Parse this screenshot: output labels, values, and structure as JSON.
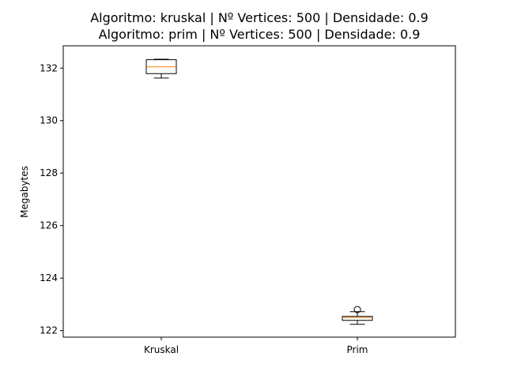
{
  "chart_data": {
    "type": "box",
    "title_lines": [
      "Algoritmo: kruskal | Nº Vertices: 500 | Densidade: 0.9",
      "Algoritmo: prim | Nº Vertices: 500 | Densidade: 0.9"
    ],
    "xlabel": "",
    "ylabel": "Megabytes",
    "ylim": [
      121.75,
      132.85
    ],
    "yticks": [
      122,
      124,
      126,
      128,
      130,
      132
    ],
    "categories": [
      "Kruskal",
      "Prim"
    ],
    "boxes": [
      {
        "name": "Kruskal",
        "whisker_low": 131.62,
        "q1": 131.79,
        "median": 132.05,
        "q3": 132.32,
        "whisker_high": 132.34,
        "outliers": []
      },
      {
        "name": "Prim",
        "whisker_low": 122.24,
        "q1": 122.39,
        "median": 122.5,
        "q3": 122.54,
        "whisker_high": 122.72,
        "outliers": [
          122.8
        ]
      }
    ],
    "grid": false,
    "colors": {
      "box": "#000000",
      "median": "#ff7f0e",
      "outlier": "#000000"
    }
  }
}
